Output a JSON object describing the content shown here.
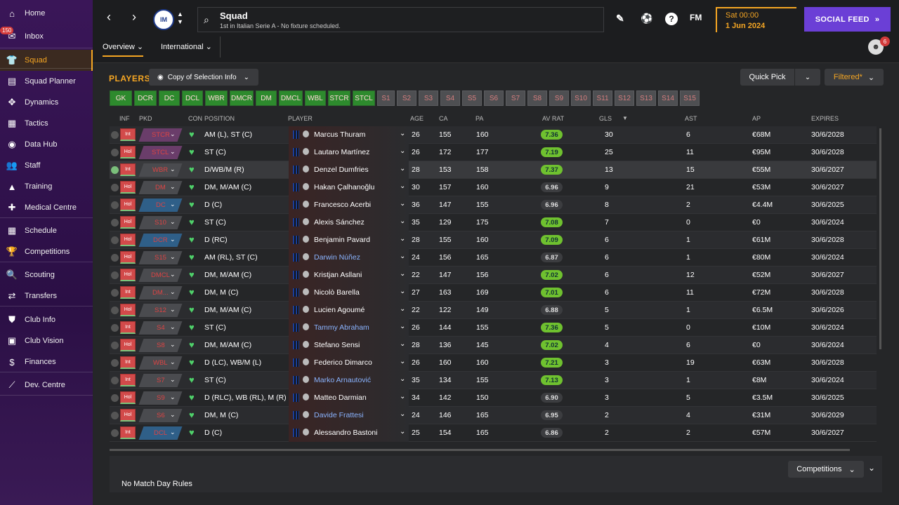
{
  "sidebar": {
    "inbox_badge": "150",
    "items": [
      {
        "label": "Home",
        "icon": "home-icon",
        "glyph": "⌂"
      },
      {
        "label": "Inbox",
        "icon": "inbox-icon",
        "glyph": "✉"
      },
      {
        "label": "Squad",
        "icon": "shirt-icon",
        "glyph": "👕"
      },
      {
        "label": "Squad Planner",
        "icon": "clipboard-icon",
        "glyph": "▤"
      },
      {
        "label": "Dynamics",
        "icon": "dynamics-icon",
        "glyph": "✥"
      },
      {
        "label": "Tactics",
        "icon": "tactics-icon",
        "glyph": "▦"
      },
      {
        "label": "Data Hub",
        "icon": "data-hub-icon",
        "glyph": "◉"
      },
      {
        "label": "Staff",
        "icon": "staff-icon",
        "glyph": "👥"
      },
      {
        "label": "Training",
        "icon": "training-icon",
        "glyph": "▲"
      },
      {
        "label": "Medical Centre",
        "icon": "medical-icon",
        "glyph": "✚"
      },
      {
        "label": "Schedule",
        "icon": "calendar-icon",
        "glyph": "▦"
      },
      {
        "label": "Competitions",
        "icon": "trophy-icon",
        "glyph": "🏆"
      },
      {
        "label": "Scouting",
        "icon": "scouting-icon",
        "glyph": "🔍"
      },
      {
        "label": "Transfers",
        "icon": "transfers-icon",
        "glyph": "⇄"
      },
      {
        "label": "Club Info",
        "icon": "shield-icon",
        "glyph": "⛊"
      },
      {
        "label": "Club Vision",
        "icon": "briefcase-icon",
        "glyph": "▣"
      },
      {
        "label": "Finances",
        "icon": "finances-icon",
        "glyph": "$"
      },
      {
        "label": "Dev. Centre",
        "icon": "dev-centre-icon",
        "glyph": "⟋"
      }
    ]
  },
  "header": {
    "title": "Squad",
    "subtitle": "1st in Italian Serie A - No fixture scheduled.",
    "crest_text": "IM",
    "date_line1": "Sat 00:00",
    "date_line2": "1 Jun 2024",
    "social_feed": "SOCIAL FEED",
    "fm_logo": "FM",
    "tabs": [
      "Overview",
      "International"
    ],
    "avatar_badge": "6"
  },
  "toolbar": {
    "players_title": "PLAYERS",
    "copy_btn": "Copy of Selection Info",
    "quick_pick": "Quick Pick",
    "filtered": "Filtered*"
  },
  "position_filters": [
    "GK",
    "DCR",
    "DC",
    "DCL",
    "WBR",
    "DMCR",
    "DM",
    "DMCL",
    "WBL",
    "STCR",
    "STCL",
    "S1",
    "S2",
    "S3",
    "S4",
    "S5",
    "S6",
    "S7",
    "S8",
    "S9",
    "S10",
    "S11",
    "S12",
    "S13",
    "S14",
    "S15"
  ],
  "position_filters_on_count": 11,
  "columns": [
    "INF",
    "PKD",
    "CON",
    "POSITION",
    "PLAYER",
    "AGE",
    "CA",
    "PA",
    "AV RAT",
    "GLS",
    "AST",
    "AP",
    "EXPIRES"
  ],
  "players": [
    {
      "tick": false,
      "pkd": "Int",
      "role": "STCR",
      "role_type": "att",
      "position": "AM (L), ST (C)",
      "name": "Marcus Thuram",
      "link": false,
      "age": "26",
      "ca": "155",
      "pa": "160",
      "avr": "7.36",
      "green": true,
      "gls": "30",
      "ast": "6",
      "ap": "€68M",
      "expires": "30/6/2028"
    },
    {
      "tick": false,
      "pkd": "Hol",
      "role": "STCL",
      "role_type": "att",
      "position": "ST (C)",
      "name": "Lautaro Martínez",
      "link": false,
      "age": "26",
      "ca": "172",
      "pa": "177",
      "avr": "7.19",
      "green": true,
      "gls": "25",
      "ast": "11",
      "ap": "€95M",
      "expires": "30/6/2028"
    },
    {
      "tick": true,
      "pkd": "Int",
      "role": "WBR",
      "role_type": "mid",
      "position": "D/WB/M (R)",
      "name": "Denzel Dumfries",
      "link": false,
      "age": "28",
      "ca": "153",
      "pa": "158",
      "avr": "7.37",
      "green": true,
      "gls": "13",
      "ast": "15",
      "ap": "€55M",
      "expires": "30/6/2027"
    },
    {
      "tick": false,
      "pkd": "Hol",
      "role": "DM",
      "role_type": "mid",
      "position": "DM, M/AM (C)",
      "name": "Hakan Çalhanoğlu",
      "link": false,
      "age": "30",
      "ca": "157",
      "pa": "160",
      "avr": "6.96",
      "green": false,
      "gls": "9",
      "ast": "21",
      "ap": "€53M",
      "expires": "30/6/2027"
    },
    {
      "tick": false,
      "pkd": "Hol",
      "role": "DC",
      "role_type": "def",
      "position": "D (C)",
      "name": "Francesco Acerbi",
      "link": false,
      "age": "36",
      "ca": "147",
      "pa": "155",
      "avr": "6.96",
      "green": false,
      "gls": "8",
      "ast": "2",
      "ap": "€4.4M",
      "expires": "30/6/2025"
    },
    {
      "tick": false,
      "pkd": "Hol",
      "role": "S10",
      "role_type": "mid",
      "position": "ST (C)",
      "name": "Alexis Sánchez",
      "link": false,
      "age": "35",
      "ca": "129",
      "pa": "175",
      "avr": "7.08",
      "green": true,
      "gls": "7",
      "ast": "0",
      "ap": "€0",
      "expires": "30/6/2024"
    },
    {
      "tick": false,
      "pkd": "Hol",
      "role": "DCR",
      "role_type": "def",
      "position": "D (RC)",
      "name": "Benjamin Pavard",
      "link": false,
      "age": "28",
      "ca": "155",
      "pa": "160",
      "avr": "7.09",
      "green": true,
      "gls": "6",
      "ast": "1",
      "ap": "€61M",
      "expires": "30/6/2028"
    },
    {
      "tick": false,
      "pkd": "Hol",
      "role": "S15",
      "role_type": "mid",
      "position": "AM (RL), ST (C)",
      "name": "Darwin Núñez",
      "link": true,
      "age": "24",
      "ca": "156",
      "pa": "165",
      "avr": "6.87",
      "green": false,
      "gls": "6",
      "ast": "1",
      "ap": "€80M",
      "expires": "30/6/2024"
    },
    {
      "tick": false,
      "pkd": "Hol",
      "role": "DMCL",
      "role_type": "mid",
      "position": "DM, M/AM (C)",
      "name": "Kristjan Asllani",
      "link": false,
      "age": "22",
      "ca": "147",
      "pa": "156",
      "avr": "7.02",
      "green": true,
      "gls": "6",
      "ast": "12",
      "ap": "€52M",
      "expires": "30/6/2027"
    },
    {
      "tick": false,
      "pkd": "Int",
      "role": "DM...",
      "role_type": "mid",
      "position": "DM, M (C)",
      "name": "Nicolò Barella",
      "link": false,
      "age": "27",
      "ca": "163",
      "pa": "169",
      "avr": "7.01",
      "green": true,
      "gls": "6",
      "ast": "11",
      "ap": "€72M",
      "expires": "30/6/2028"
    },
    {
      "tick": false,
      "pkd": "Hol",
      "role": "S12",
      "role_type": "mid",
      "position": "DM, M/AM (C)",
      "name": "Lucien Agoumé",
      "link": false,
      "age": "22",
      "ca": "122",
      "pa": "149",
      "avr": "6.88",
      "green": false,
      "gls": "5",
      "ast": "1",
      "ap": "€6.5M",
      "expires": "30/6/2026"
    },
    {
      "tick": false,
      "pkd": "Int",
      "role": "S4",
      "role_type": "mid",
      "position": "ST (C)",
      "name": "Tammy Abraham",
      "link": true,
      "age": "26",
      "ca": "144",
      "pa": "155",
      "avr": "7.36",
      "green": true,
      "gls": "5",
      "ast": "0",
      "ap": "€10M",
      "expires": "30/6/2024"
    },
    {
      "tick": false,
      "pkd": "Hol",
      "role": "S8",
      "role_type": "mid",
      "position": "DM, M/AM (C)",
      "name": "Stefano Sensi",
      "link": false,
      "age": "28",
      "ca": "136",
      "pa": "145",
      "avr": "7.02",
      "green": true,
      "gls": "4",
      "ast": "6",
      "ap": "€0",
      "expires": "30/6/2024"
    },
    {
      "tick": false,
      "pkd": "Int",
      "role": "WBL",
      "role_type": "mid",
      "position": "D (LC), WB/M (L)",
      "name": "Federico Dimarco",
      "link": false,
      "age": "26",
      "ca": "160",
      "pa": "160",
      "avr": "7.21",
      "green": true,
      "gls": "3",
      "ast": "19",
      "ap": "€63M",
      "expires": "30/6/2028"
    },
    {
      "tick": false,
      "pkd": "Int",
      "role": "S7",
      "role_type": "mid",
      "position": "ST (C)",
      "name": "Marko Arnautović",
      "link": true,
      "age": "35",
      "ca": "134",
      "pa": "155",
      "avr": "7.13",
      "green": true,
      "gls": "3",
      "ast": "1",
      "ap": "€8M",
      "expires": "30/6/2024"
    },
    {
      "tick": false,
      "pkd": "Hol",
      "role": "S9",
      "role_type": "mid",
      "position": "D (RLC), WB (RL), M (R)",
      "name": "Matteo Darmian",
      "link": false,
      "age": "34",
      "ca": "142",
      "pa": "150",
      "avr": "6.90",
      "green": false,
      "gls": "3",
      "ast": "5",
      "ap": "€3.5M",
      "expires": "30/6/2025"
    },
    {
      "tick": false,
      "pkd": "Hol",
      "role": "S6",
      "role_type": "mid",
      "position": "DM, M (C)",
      "name": "Davide Frattesi",
      "link": true,
      "age": "24",
      "ca": "146",
      "pa": "165",
      "avr": "6.95",
      "green": false,
      "gls": "2",
      "ast": "4",
      "ap": "€31M",
      "expires": "30/6/2029"
    },
    {
      "tick": false,
      "pkd": "Int",
      "role": "DCL",
      "role_type": "def",
      "position": "D (C)",
      "name": "Alessandro Bastoni",
      "link": false,
      "age": "25",
      "ca": "154",
      "pa": "165",
      "avr": "6.86",
      "green": false,
      "gls": "2",
      "ast": "2",
      "ap": "€57M",
      "expires": "30/6/2027"
    }
  ],
  "footer": {
    "competitions": "Competitions",
    "no_match": "No Match Day Rules"
  }
}
